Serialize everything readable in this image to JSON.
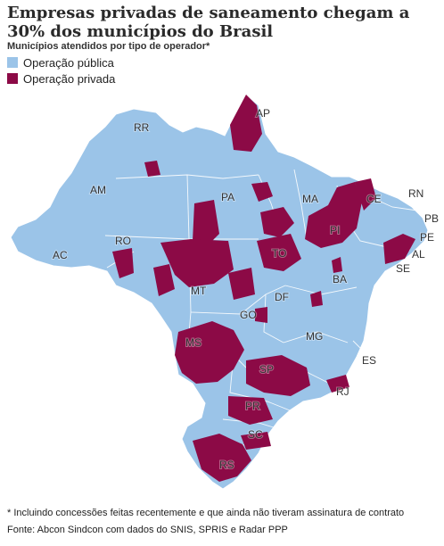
{
  "title": "Empresas privadas de saneamento chegam a 30% dos municípios do Brasil",
  "subtitle": "Municípios atendidos por tipo de operador*",
  "legend": [
    {
      "label": "Operação pública",
      "color": "#9bc4e8"
    },
    {
      "label": "Operação privada",
      "color": "#8c0a46"
    }
  ],
  "map": {
    "land_color": "#9bc4e8",
    "private_color": "#8c0a46",
    "states": [
      "AP",
      "RR",
      "AM",
      "PA",
      "MA",
      "CE",
      "RN",
      "PB",
      "PE",
      "PI",
      "AL",
      "SE",
      "AC",
      "RO",
      "TO",
      "BA",
      "MT",
      "DF",
      "GO",
      "MG",
      "ES",
      "MS",
      "SP",
      "RJ",
      "PR",
      "SC",
      "RS"
    ]
  },
  "footnote": "* Incluindo concessões feitas recentemente e que ainda não tiveram assinatura de contrato",
  "source": "Fonte: Abcon Sindcon com dados do SNIS, SPRIS e Radar PPP"
}
